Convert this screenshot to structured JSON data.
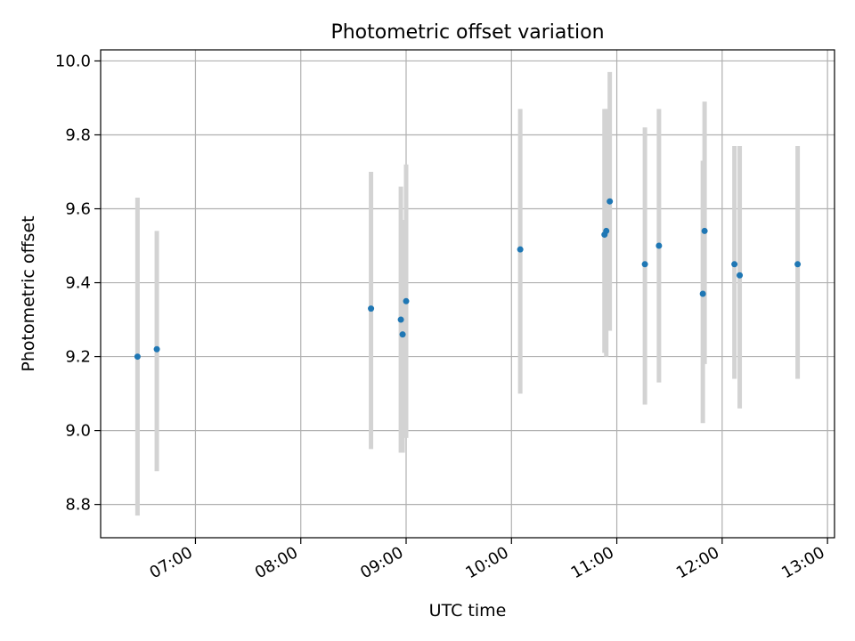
{
  "chart_data": {
    "type": "scatter",
    "title": "Photometric offset variation",
    "xlabel": "UTC time",
    "ylabel": "Photometric offset",
    "x_ticks": [
      "07:00",
      "08:00",
      "09:00",
      "10:00",
      "11:00",
      "12:00",
      "13:00"
    ],
    "y_ticks": [
      "8.8",
      "9.0",
      "9.2",
      "9.4",
      "9.6",
      "9.8",
      "10.0"
    ],
    "xlim": [
      "06:06",
      "13:04"
    ],
    "ylim": [
      8.71,
      10.03
    ],
    "grid": true,
    "series": [
      {
        "points": [
          {
            "x": "06:27",
            "y": 9.2,
            "err_low": 8.77,
            "err_high": 9.63
          },
          {
            "x": "06:38",
            "y": 9.22,
            "err_low": 8.89,
            "err_high": 9.54
          },
          {
            "x": "08:40",
            "y": 9.33,
            "err_low": 8.95,
            "err_high": 9.7
          },
          {
            "x": "08:57",
            "y": 9.3,
            "err_low": 8.94,
            "err_high": 9.66
          },
          {
            "x": "08:58",
            "y": 9.26,
            "err_low": 8.94,
            "err_high": 9.57
          },
          {
            "x": "09:00",
            "y": 9.35,
            "err_low": 8.98,
            "err_high": 9.72
          },
          {
            "x": "10:05",
            "y": 9.49,
            "err_low": 9.1,
            "err_high": 9.87
          },
          {
            "x": "10:53",
            "y": 9.53,
            "err_low": 9.21,
            "err_high": 9.87
          },
          {
            "x": "10:54",
            "y": 9.54,
            "err_low": 9.2,
            "err_high": 9.87
          },
          {
            "x": "10:56",
            "y": 9.62,
            "err_low": 9.27,
            "err_high": 9.97
          },
          {
            "x": "11:16",
            "y": 9.45,
            "err_low": 9.07,
            "err_high": 9.82
          },
          {
            "x": "11:24",
            "y": 9.5,
            "err_low": 9.13,
            "err_high": 9.87
          },
          {
            "x": "11:49",
            "y": 9.37,
            "err_low": 9.02,
            "err_high": 9.73
          },
          {
            "x": "11:50",
            "y": 9.54,
            "err_low": 9.18,
            "err_high": 9.89
          },
          {
            "x": "12:07",
            "y": 9.45,
            "err_low": 9.14,
            "err_high": 9.77
          },
          {
            "x": "12:10",
            "y": 9.42,
            "err_low": 9.06,
            "err_high": 9.77
          },
          {
            "x": "12:43",
            "y": 9.45,
            "err_low": 9.14,
            "err_high": 9.77
          }
        ]
      }
    ],
    "colors": {
      "marker": "#1f77b4",
      "errorbar": "#d3d3d3",
      "grid": "#b0b0b0",
      "axis": "#000000"
    }
  }
}
